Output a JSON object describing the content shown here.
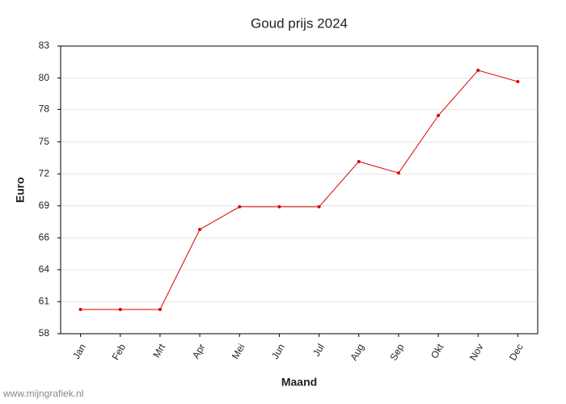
{
  "chart_data": {
    "type": "line",
    "title": "Goud prijs 2024",
    "x_label": "Maand",
    "y_label": "Euro",
    "watermark": "www.mijngrafiek.nl",
    "categories": [
      "Jan",
      "Feb",
      "Mrt",
      "Apr",
      "Mei",
      "Jun",
      "Jul",
      "Aug",
      "Sep",
      "Okt",
      "Nov",
      "Dec"
    ],
    "series": [
      {
        "name": "Goud prijs",
        "color": "#dd0000",
        "values": [
          60.11,
          60.11,
          60.11,
          67.06,
          69.03,
          69.03,
          69.03,
          72.96,
          71.97,
          76.96,
          80.89,
          79.91
        ]
      }
    ],
    "ylim": [
      58,
      83
    ],
    "yticks": [
      58,
      {
        "value": 60.78,
        "label": "61"
      },
      {
        "value": 63.56,
        "label": "64"
      },
      {
        "value": 66.33,
        "label": "66"
      },
      {
        "value": 69.11,
        "label": "69"
      },
      {
        "value": 71.89,
        "label": "72"
      },
      {
        "value": 74.67,
        "label": "75"
      },
      {
        "value": 77.5,
        "label": "78"
      },
      {
        "value": 80.22,
        "label": "80"
      },
      83
    ],
    "grid": true
  }
}
